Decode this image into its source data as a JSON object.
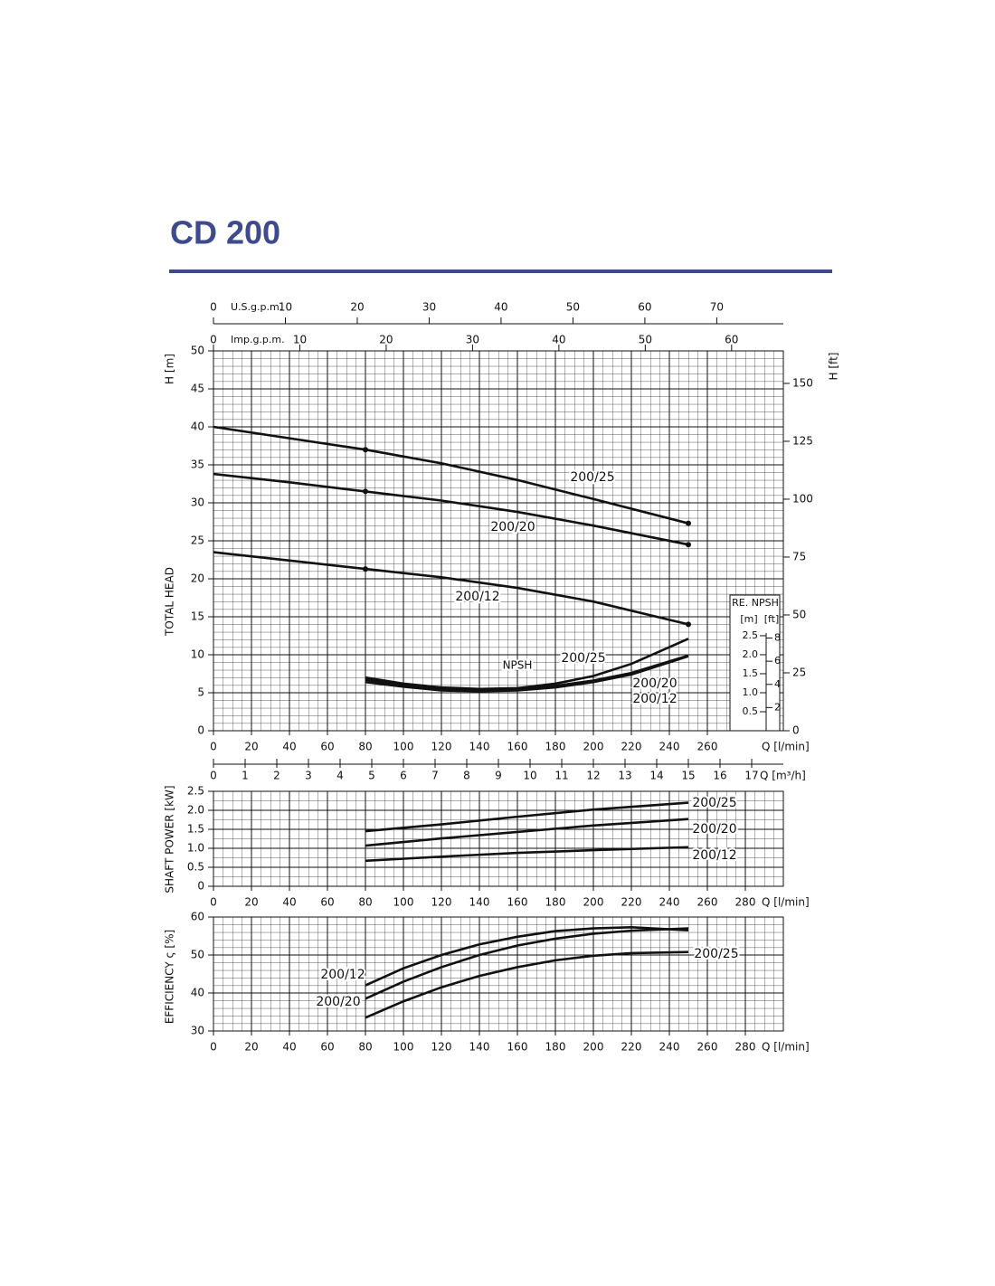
{
  "title": "CD 200",
  "chart_data": [
    {
      "type": "line",
      "y_label": "H [m]",
      "side_label": "TOTAL HEAD",
      "x_label": "Q [l/min]",
      "xlim": [
        0,
        300
      ],
      "ylim": [
        0,
        50
      ],
      "xticks": [
        0,
        20,
        40,
        60,
        80,
        100,
        120,
        140,
        160,
        180,
        200,
        220,
        240,
        260
      ],
      "yticks": [
        0,
        5,
        10,
        15,
        20,
        25,
        30,
        35,
        40,
        45,
        50
      ],
      "grid": true,
      "y2_label": "H [ft]",
      "y2lim": [
        0,
        164.04
      ],
      "y2ticks": [
        0,
        25,
        50,
        75,
        100,
        125,
        150
      ],
      "annotation": "NPSH",
      "series": [
        {
          "name": "200/25",
          "color": "#111111",
          "x": [
            0,
            40,
            80,
            120,
            160,
            200,
            250
          ],
          "values": [
            40,
            38.5,
            37,
            35.2,
            33,
            30.5,
            27.3
          ]
        },
        {
          "name": "200/20",
          "color": "#111111",
          "x": [
            0,
            40,
            80,
            120,
            160,
            200,
            250
          ],
          "values": [
            33.8,
            32.7,
            31.5,
            30.3,
            28.8,
            27,
            24.5
          ]
        },
        {
          "name": "200/12",
          "color": "#111111",
          "x": [
            0,
            40,
            80,
            120,
            160,
            200,
            250
          ],
          "values": [
            23.5,
            22.4,
            21.3,
            20.2,
            18.8,
            17,
            14
          ]
        },
        {
          "name": "200/25",
          "color": "#111111",
          "x": [
            80,
            100,
            120,
            140,
            160,
            180,
            200,
            220,
            250
          ],
          "values": [
            7,
            6.2,
            5.7,
            5.5,
            5.6,
            6.2,
            7.2,
            8.8,
            12.1
          ]
        },
        {
          "name": "200/20",
          "color": "#111111",
          "x": [
            80,
            100,
            120,
            140,
            160,
            180,
            200,
            220,
            250
          ],
          "values": [
            6.7,
            6,
            5.5,
            5.3,
            5.4,
            5.9,
            6.6,
            7.6,
            9.9
          ]
        },
        {
          "name": "200/12",
          "color": "#111111",
          "x": [
            80,
            100,
            120,
            140,
            160,
            180,
            200,
            220,
            250
          ],
          "values": [
            6.4,
            5.8,
            5.3,
            5.2,
            5.3,
            5.7,
            6.4,
            7.4,
            9.8
          ]
        }
      ],
      "top_axes": [
        {
          "label": "U.S.g.p.m.",
          "xlim": [
            0,
            79.26
          ],
          "xticks": [
            0,
            10,
            20,
            30,
            40,
            50,
            60,
            70
          ]
        },
        {
          "label": "Imp.g.p.m.",
          "xlim": [
            0,
            65.99
          ],
          "xticks": [
            0,
            10,
            20,
            30,
            40,
            50,
            60
          ]
        }
      ],
      "bottom_axis": {
        "label": "Q [m³/h]",
        "xlim": [
          0,
          18
        ],
        "xticks": [
          0,
          1,
          2,
          3,
          4,
          5,
          6,
          7,
          8,
          9,
          10,
          11,
          12,
          13,
          14,
          15,
          16,
          17
        ]
      },
      "npsh_scale": {
        "title": "RE. NPSH",
        "unit": "[m]",
        "unit2": "[ft]",
        "ylim": [
          0,
          3.57
        ],
        "yticks": [
          0.5,
          {
            "value": 1,
            "label": "1.0"
          },
          1.5,
          {
            "value": 2,
            "label": "2.0"
          },
          2.5
        ],
        "y2lim": [
          0,
          11.71
        ],
        "y2ticks": [
          2,
          4,
          6,
          8
        ]
      }
    },
    {
      "type": "line",
      "y_label": "SHAFT POWER [kW]",
      "x_label": "Q [l/min]",
      "xlim": [
        0,
        300
      ],
      "ylim": [
        0,
        2.5
      ],
      "xticks": [
        0,
        20,
        40,
        60,
        80,
        100,
        120,
        140,
        160,
        180,
        200,
        220,
        240,
        260,
        280
      ],
      "yticks": [
        0,
        0.5,
        {
          "value": 1,
          "label": "1.0"
        },
        1.5,
        {
          "value": 2,
          "label": "2.0"
        },
        2.5
      ],
      "grid": true,
      "series": [
        {
          "name": "200/25",
          "color": "#111111",
          "x": [
            80,
            120,
            160,
            200,
            250
          ],
          "values": [
            1.45,
            1.63,
            1.83,
            2.02,
            2.2
          ]
        },
        {
          "name": "200/20",
          "color": "#111111",
          "x": [
            80,
            120,
            160,
            200,
            250
          ],
          "values": [
            1.07,
            1.26,
            1.43,
            1.6,
            1.77
          ]
        },
        {
          "name": "200/12",
          "color": "#111111",
          "x": [
            80,
            120,
            160,
            200,
            250
          ],
          "values": [
            0.67,
            0.78,
            0.88,
            0.95,
            1.03
          ]
        }
      ]
    },
    {
      "type": "line",
      "y_label": "EFFICIENCY ς [%]",
      "x_label": "Q [l/min]",
      "xlim": [
        0,
        300
      ],
      "ylim": [
        30,
        60
      ],
      "xticks": [
        0,
        20,
        40,
        60,
        80,
        100,
        120,
        140,
        160,
        180,
        200,
        220,
        240,
        260,
        280
      ],
      "yticks": [
        30,
        40,
        50,
        60
      ],
      "grid": true,
      "series": [
        {
          "name": "200/12",
          "color": "#111111",
          "x": [
            80,
            100,
            120,
            140,
            160,
            180,
            200,
            220,
            250
          ],
          "values": [
            42,
            46.5,
            50,
            52.8,
            54.8,
            56.3,
            57,
            57.3,
            56.5
          ]
        },
        {
          "name": "200/20",
          "color": "#111111",
          "x": [
            80,
            100,
            120,
            140,
            160,
            180,
            200,
            220,
            250
          ],
          "values": [
            38.5,
            43,
            46.8,
            50,
            52.5,
            54.3,
            55.6,
            56.4,
            57
          ]
        },
        {
          "name": "200/25",
          "color": "#111111",
          "x": [
            80,
            100,
            120,
            140,
            160,
            180,
            200,
            220,
            250
          ],
          "values": [
            33.5,
            37.8,
            41.5,
            44.5,
            46.8,
            48.6,
            49.8,
            50.5,
            50.8
          ]
        }
      ]
    }
  ]
}
